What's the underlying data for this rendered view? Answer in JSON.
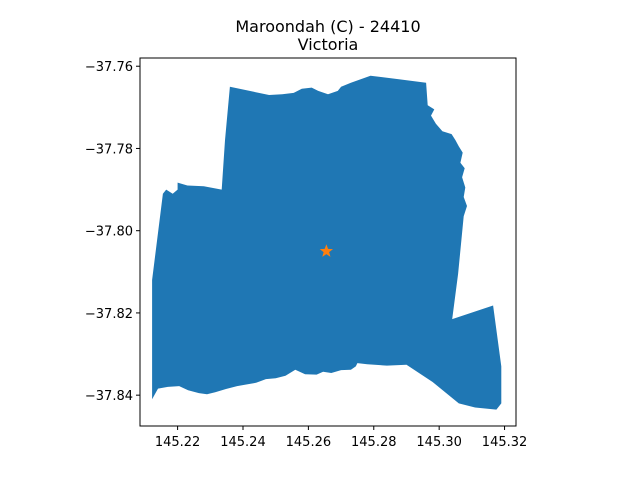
{
  "title": {
    "line1": "Maroondah (C) - 24410",
    "line2": "Victoria"
  },
  "colors": {
    "region_fill": "#1f77b4",
    "marker_fill": "#ff7f0e",
    "axes": "#000000",
    "background": "#ffffff"
  },
  "chart_data": {
    "type": "map",
    "xlim": [
      145.2085,
      145.3235
    ],
    "ylim": [
      -37.8475,
      -37.758
    ],
    "grid": false,
    "x_ticks": [
      {
        "value": 145.22,
        "label": "145.22"
      },
      {
        "value": 145.24,
        "label": "145.24"
      },
      {
        "value": 145.26,
        "label": "145.26"
      },
      {
        "value": 145.28,
        "label": "145.28"
      },
      {
        "value": 145.3,
        "label": "145.30"
      },
      {
        "value": 145.32,
        "label": "145.32"
      }
    ],
    "y_ticks": [
      {
        "value": -37.76,
        "label": "−37.76"
      },
      {
        "value": -37.78,
        "label": "−37.78"
      },
      {
        "value": -37.8,
        "label": "−37.80"
      },
      {
        "value": -37.82,
        "label": "−37.82"
      },
      {
        "value": -37.84,
        "label": "−37.84"
      }
    ],
    "centroid": {
      "lon": 145.2655,
      "lat": -37.805,
      "marker": "star"
    },
    "boundary": [
      [
        145.2122,
        -37.841
      ],
      [
        145.214,
        -37.8384
      ],
      [
        145.217,
        -37.838
      ],
      [
        145.2205,
        -37.8378
      ],
      [
        145.2232,
        -37.8388
      ],
      [
        145.2265,
        -37.8395
      ],
      [
        145.229,
        -37.8398
      ],
      [
        145.2315,
        -37.8393
      ],
      [
        145.2348,
        -37.8385
      ],
      [
        145.2382,
        -37.8378
      ],
      [
        145.241,
        -37.8374
      ],
      [
        145.244,
        -37.837
      ],
      [
        145.247,
        -37.8361
      ],
      [
        145.25,
        -37.8359
      ],
      [
        145.253,
        -37.8353
      ],
      [
        145.256,
        -37.8338
      ],
      [
        145.259,
        -37.8349
      ],
      [
        145.2625,
        -37.835
      ],
      [
        145.2645,
        -37.8343
      ],
      [
        145.267,
        -37.8346
      ],
      [
        145.27,
        -37.8339
      ],
      [
        145.273,
        -37.8338
      ],
      [
        145.2745,
        -37.833
      ],
      [
        145.275,
        -37.8322
      ],
      [
        145.278,
        -37.8325
      ],
      [
        145.284,
        -37.8328
      ],
      [
        145.29,
        -37.8326
      ],
      [
        145.298,
        -37.8368
      ],
      [
        145.306,
        -37.842
      ],
      [
        145.311,
        -37.843
      ],
      [
        145.3175,
        -37.8435
      ],
      [
        145.319,
        -37.842
      ],
      [
        145.319,
        -37.833
      ],
      [
        145.3165,
        -37.8182
      ],
      [
        145.304,
        -37.8215
      ],
      [
        145.3058,
        -37.8105
      ],
      [
        145.3075,
        -37.7965
      ],
      [
        145.3085,
        -37.794
      ],
      [
        145.3075,
        -37.7918
      ],
      [
        145.308,
        -37.7895
      ],
      [
        145.307,
        -37.787
      ],
      [
        145.3078,
        -37.7848
      ],
      [
        145.3065,
        -37.7835
      ],
      [
        145.3072,
        -37.781
      ],
      [
        145.306,
        -37.7795
      ],
      [
        145.305,
        -37.778
      ],
      [
        145.3038,
        -37.7765
      ],
      [
        145.301,
        -37.7758
      ],
      [
        145.299,
        -37.774
      ],
      [
        145.2975,
        -37.772
      ],
      [
        145.2985,
        -37.7705
      ],
      [
        145.2965,
        -37.7695
      ],
      [
        145.296,
        -37.764
      ],
      [
        145.288,
        -37.7632
      ],
      [
        145.279,
        -37.7623
      ],
      [
        145.273,
        -37.764
      ],
      [
        145.27,
        -37.765
      ],
      [
        145.269,
        -37.766
      ],
      [
        145.266,
        -37.7668
      ],
      [
        145.263,
        -37.766
      ],
      [
        145.261,
        -37.7652
      ],
      [
        145.258,
        -37.7655
      ],
      [
        145.2555,
        -37.7665
      ],
      [
        145.252,
        -37.7668
      ],
      [
        145.248,
        -37.767
      ],
      [
        145.236,
        -37.765
      ],
      [
        145.2345,
        -37.778
      ],
      [
        145.2335,
        -37.79
      ],
      [
        145.228,
        -37.7892
      ],
      [
        145.223,
        -37.789
      ],
      [
        145.22,
        -37.7883
      ],
      [
        145.22,
        -37.79
      ],
      [
        145.2185,
        -37.791
      ],
      [
        145.2165,
        -37.79
      ],
      [
        145.2155,
        -37.791
      ],
      [
        145.2122,
        -37.812
      ]
    ]
  }
}
